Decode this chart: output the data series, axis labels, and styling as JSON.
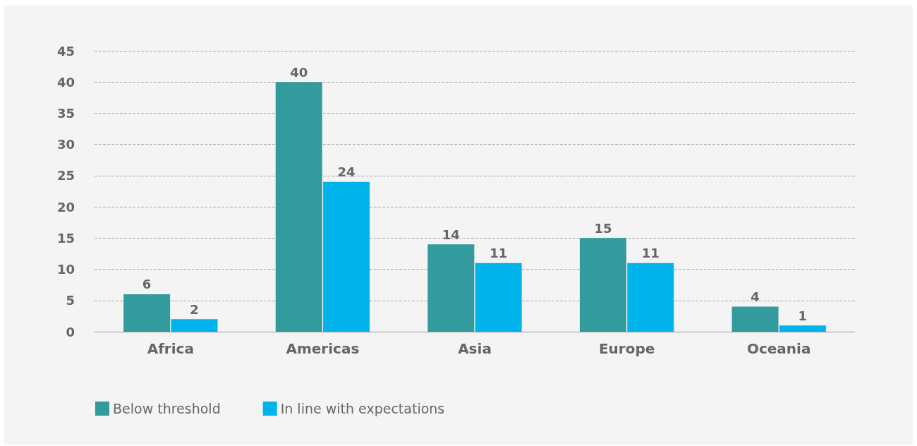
{
  "chart_data": {
    "type": "bar",
    "categories": [
      "Africa",
      "Americas",
      "Asia",
      "Europe",
      "Oceania"
    ],
    "series": [
      {
        "name": "Below threshold",
        "color": "#339a9e",
        "values": [
          6,
          40,
          14,
          15,
          4
        ]
      },
      {
        "name": "In line with expectations",
        "color": "#00b4eb",
        "values": [
          2,
          24,
          11,
          11,
          1
        ]
      }
    ],
    "ylim": [
      0,
      45
    ],
    "yticks": [
      0,
      5,
      10,
      15,
      20,
      25,
      30,
      35,
      40,
      45
    ],
    "grid": "y",
    "line_style": "dashed",
    "data_labels": true,
    "legend": "bottom left"
  }
}
